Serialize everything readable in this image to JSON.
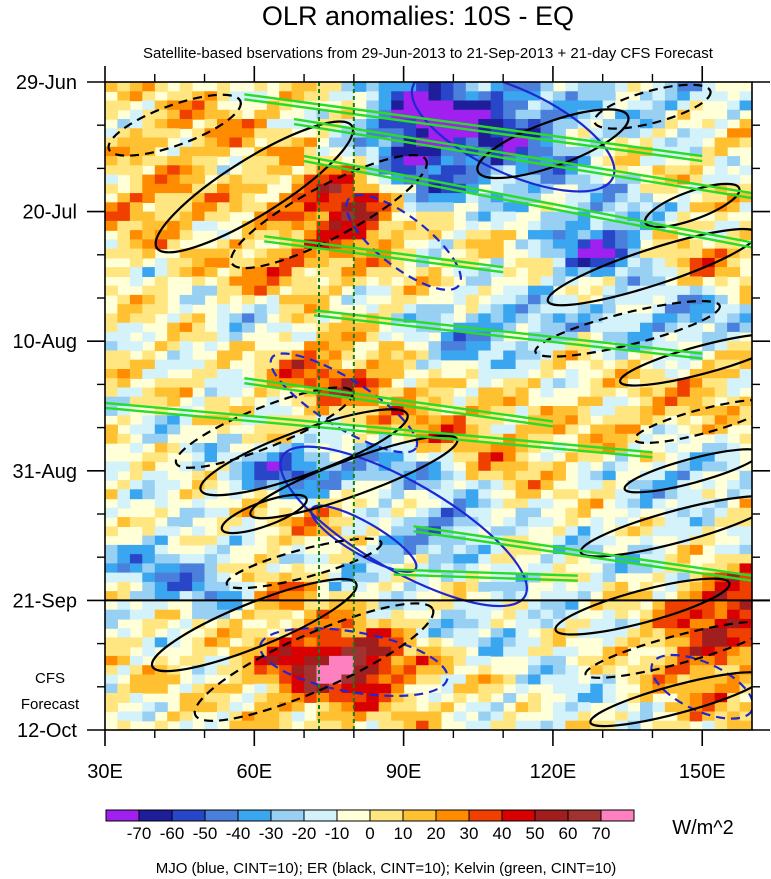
{
  "chart_data": {
    "type": "heatmap",
    "title": "OLR anomalies: 10S - EQ",
    "subtitle": "Satellite-based bservations from 29-Jun-2013 to 21-Sep-2013 + 21-day CFS Forecast",
    "x_ticks": [
      {
        "label": "30E",
        "value": 30
      },
      {
        "label": "60E",
        "value": 60
      },
      {
        "label": "90E",
        "value": 90
      },
      {
        "label": "120E",
        "value": 120
      },
      {
        "label": "150E",
        "value": 150
      }
    ],
    "xlim": [
      30,
      160
    ],
    "y_ticks": [
      {
        "label": "29-Jun",
        "day": 0
      },
      {
        "label": "20-Jul",
        "day": 21
      },
      {
        "label": "10-Aug",
        "day": 42
      },
      {
        "label": "31-Aug",
        "day": 63
      },
      {
        "label": "21-Sep",
        "day": 84
      },
      {
        "label": "12-Oct",
        "day": 105
      }
    ],
    "ylim_days": [
      0,
      105
    ],
    "forecast_label_line1": "CFS",
    "forecast_label_line2": "Forecast",
    "forecast_start_day": 84,
    "reference_longitudes": [
      73,
      80
    ],
    "colorbar_labels": [
      "-70",
      "-60",
      "-50",
      "-40",
      "-30",
      "-20",
      "-10",
      "0",
      "10",
      "20",
      "30",
      "40",
      "50",
      "60",
      "70"
    ],
    "colorbar_colors": [
      "#a020f0",
      "#1e1e9a",
      "#2a46c8",
      "#4a80dc",
      "#3aa6f0",
      "#98d0f4",
      "#d4f2fa",
      "#ffffd8",
      "#ffe680",
      "#ffc032",
      "#ff8c00",
      "#f04000",
      "#d80000",
      "#a01e1e",
      "#a03232",
      "#ff80c0"
    ],
    "units": "W/m^2",
    "footer": "MJO (blue, CINT=10); ER (black, CINT=10); Kelvin (green, CINT=10)",
    "contour_colors": {
      "MJO": "#1e28d2",
      "ER": "#000000",
      "Kelvin": "#28dc28"
    }
  }
}
